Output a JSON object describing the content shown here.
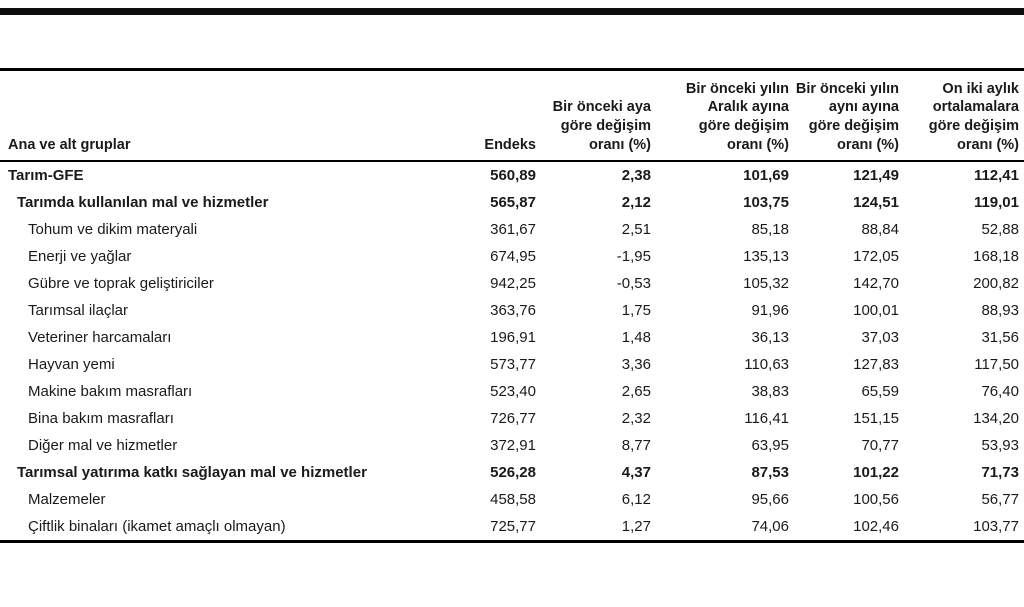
{
  "accent_colors": {
    "rule": "#0d0d0d",
    "text": "#1a1a1a",
    "background": "#ffffff"
  },
  "table": {
    "columns": [
      {
        "key": "label",
        "label": "Ana ve alt gruplar"
      },
      {
        "key": "endeks",
        "label": "Endeks"
      },
      {
        "key": "monthly",
        "label": "Bir önceki aya\ngöre değişim\noranı (%)"
      },
      {
        "key": "dec",
        "label": "Bir önceki yılın\nAralık ayına\ngöre değişim\noranı (%)"
      },
      {
        "key": "yoy",
        "label": "Bir önceki yılın\naynı ayına\ngöre değişim\noranı (%)"
      },
      {
        "key": "avg12",
        "label": "On iki aylık\nortalamalara\ngöre değişim\noranı (%)"
      }
    ],
    "rows": [
      {
        "label": "Tarım-GFE",
        "endeks": "560,89",
        "monthly": "2,38",
        "dec": "101,69",
        "yoy": "121,49",
        "avg12": "112,41",
        "emphasis": "bold",
        "indent": 0
      },
      {
        "label": "Tarımda kullanılan mal ve hizmetler",
        "endeks": "565,87",
        "monthly": "2,12",
        "dec": "103,75",
        "yoy": "124,51",
        "avg12": "119,01",
        "emphasis": "bold",
        "indent": 1
      },
      {
        "label": "Tohum ve dikim materyali",
        "endeks": "361,67",
        "monthly": "2,51",
        "dec": "85,18",
        "yoy": "88,84",
        "avg12": "52,88",
        "emphasis": "normal",
        "indent": 2
      },
      {
        "label": "Enerji ve yağlar",
        "endeks": "674,95",
        "monthly": "-1,95",
        "dec": "135,13",
        "yoy": "172,05",
        "avg12": "168,18",
        "emphasis": "normal",
        "indent": 2
      },
      {
        "label": "Gübre ve toprak geliştiriciler",
        "endeks": "942,25",
        "monthly": "-0,53",
        "dec": "105,32",
        "yoy": "142,70",
        "avg12": "200,82",
        "emphasis": "normal",
        "indent": 2
      },
      {
        "label": "Tarımsal ilaçlar",
        "endeks": "363,76",
        "monthly": "1,75",
        "dec": "91,96",
        "yoy": "100,01",
        "avg12": "88,93",
        "emphasis": "normal",
        "indent": 2
      },
      {
        "label": "Veteriner harcamaları",
        "endeks": "196,91",
        "monthly": "1,48",
        "dec": "36,13",
        "yoy": "37,03",
        "avg12": "31,56",
        "emphasis": "normal",
        "indent": 2
      },
      {
        "label": "Hayvan yemi",
        "endeks": "573,77",
        "monthly": "3,36",
        "dec": "110,63",
        "yoy": "127,83",
        "avg12": "117,50",
        "emphasis": "normal",
        "indent": 2
      },
      {
        "label": "Makine bakım masrafları",
        "endeks": "523,40",
        "monthly": "2,65",
        "dec": "38,83",
        "yoy": "65,59",
        "avg12": "76,40",
        "emphasis": "normal",
        "indent": 2
      },
      {
        "label": "Bina bakım masrafları",
        "endeks": "726,77",
        "monthly": "2,32",
        "dec": "116,41",
        "yoy": "151,15",
        "avg12": "134,20",
        "emphasis": "normal",
        "indent": 2
      },
      {
        "label": "Diğer mal ve hizmetler",
        "endeks": "372,91",
        "monthly": "8,77",
        "dec": "63,95",
        "yoy": "70,77",
        "avg12": "53,93",
        "emphasis": "normal",
        "indent": 2
      },
      {
        "label": "Tarımsal yatırıma katkı sağlayan mal ve hizmetler",
        "endeks": "526,28",
        "monthly": "4,37",
        "dec": "87,53",
        "yoy": "101,22",
        "avg12": "71,73",
        "emphasis": "bold",
        "indent": 1
      },
      {
        "label": "Malzemeler",
        "endeks": "458,58",
        "monthly": "6,12",
        "dec": "95,66",
        "yoy": "100,56",
        "avg12": "56,77",
        "emphasis": "normal",
        "indent": 2
      },
      {
        "label": "Çiftlik binaları (ikamet amaçlı olmayan)",
        "endeks": "725,77",
        "monthly": "1,27",
        "dec": "74,06",
        "yoy": "102,46",
        "avg12": "103,77",
        "emphasis": "normal",
        "indent": 2
      }
    ]
  },
  "chart_data": {
    "type": "table",
    "title": "",
    "columns": [
      "Ana ve alt gruplar",
      "Endeks",
      "Bir önceki aya göre değişim oranı (%)",
      "Bir önceki yılın Aralık ayına göre değişim oranı (%)",
      "Bir önceki yılın aynı ayına göre değişim oranı (%)",
      "On iki aylık ortalamalara göre değişim oranı (%)"
    ],
    "rows": [
      [
        "Tarım-GFE",
        560.89,
        2.38,
        101.69,
        121.49,
        112.41
      ],
      [
        "Tarımda kullanılan mal ve hizmetler",
        565.87,
        2.12,
        103.75,
        124.51,
        119.01
      ],
      [
        "Tohum ve dikim materyali",
        361.67,
        2.51,
        85.18,
        88.84,
        52.88
      ],
      [
        "Enerji ve yağlar",
        674.95,
        -1.95,
        135.13,
        172.05,
        168.18
      ],
      [
        "Gübre ve toprak geliştiriciler",
        942.25,
        -0.53,
        105.32,
        142.7,
        200.82
      ],
      [
        "Tarımsal ilaçlar",
        363.76,
        1.75,
        91.96,
        100.01,
        88.93
      ],
      [
        "Veteriner harcamaları",
        196.91,
        1.48,
        36.13,
        37.03,
        31.56
      ],
      [
        "Hayvan yemi",
        573.77,
        3.36,
        110.63,
        127.83,
        117.5
      ],
      [
        "Makine bakım masrafları",
        523.4,
        2.65,
        38.83,
        65.59,
        76.4
      ],
      [
        "Bina bakım masrafları",
        726.77,
        2.32,
        116.41,
        151.15,
        134.2
      ],
      [
        "Diğer mal ve hizmetler",
        372.91,
        8.77,
        63.95,
        70.77,
        53.93
      ],
      [
        "Tarımsal yatırıma katkı sağlayan mal ve hizmetler",
        526.28,
        4.37,
        87.53,
        101.22,
        71.73
      ],
      [
        "Malzemeler",
        458.58,
        6.12,
        95.66,
        100.56,
        56.77
      ],
      [
        "Çiftlik binaları (ikamet amaçlı olmayan)",
        725.77,
        1.27,
        74.06,
        102.46,
        103.77
      ]
    ],
    "decimal_separator": ",",
    "layout": {
      "bold_rows": [
        0,
        1,
        11
      ],
      "number_alignment": "right"
    }
  }
}
